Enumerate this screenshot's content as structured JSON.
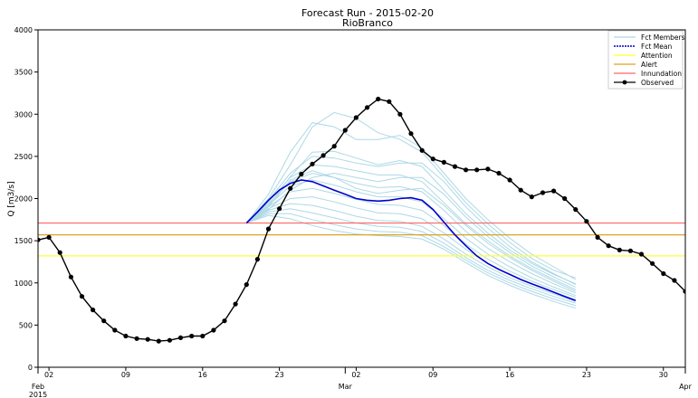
{
  "chart_data": {
    "type": "line",
    "title": "Forecast Run - 2015-02-20",
    "subtitle": "RioBranco",
    "xlabel": "",
    "ylabel": "Q [m3/s]",
    "xlim": [
      "2015-02-01",
      "2015-04-01"
    ],
    "ylim": [
      0,
      4000
    ],
    "y_ticks": [
      0,
      500,
      1000,
      1500,
      2000,
      2500,
      3000,
      3500,
      4000
    ],
    "x_ticks": [
      {
        "date": "2015-02-02",
        "label": "02"
      },
      {
        "date": "2015-02-09",
        "label": "09"
      },
      {
        "date": "2015-02-16",
        "label": "16"
      },
      {
        "date": "2015-02-23",
        "label": "23"
      },
      {
        "date": "2015-03-02",
        "label": "02"
      },
      {
        "date": "2015-03-09",
        "label": "09"
      },
      {
        "date": "2015-03-16",
        "label": "16"
      },
      {
        "date": "2015-03-23",
        "label": "23"
      },
      {
        "date": "2015-03-30",
        "label": "30"
      }
    ],
    "x_major_labels": [
      {
        "date": "2015-02-01",
        "label": "Feb"
      },
      {
        "date": "2015-02-01",
        "label": "2015"
      },
      {
        "date": "2015-03-01",
        "label": "Mar"
      },
      {
        "date": "2015-04-01",
        "label": "Apr"
      }
    ],
    "grid": false,
    "legend_position": "top-right",
    "legend": [
      {
        "label": "Fct Members",
        "color": "#add8e6",
        "style": "line"
      },
      {
        "label": "Fct Mean",
        "color": "#0000cd",
        "style": "dashed"
      },
      {
        "label": "Attention",
        "color": "#ffff33",
        "style": "line"
      },
      {
        "label": "Alert",
        "color": "#daa520",
        "style": "line"
      },
      {
        "label": "Innundation",
        "color": "#ff6666",
        "style": "line"
      },
      {
        "label": "Observed",
        "color": "#000000",
        "style": "line-marker"
      }
    ],
    "thresholds": [
      {
        "name": "Attention",
        "value": 1320,
        "color": "#ffff33"
      },
      {
        "name": "Alert",
        "value": 1570,
        "color": "#daa520"
      },
      {
        "name": "Innundation",
        "value": 1710,
        "color": "#ff6666"
      }
    ],
    "observed": {
      "name": "Observed",
      "color": "#000000",
      "x": [
        "2015-02-01",
        "2015-02-02",
        "2015-02-03",
        "2015-02-04",
        "2015-02-05",
        "2015-02-06",
        "2015-02-07",
        "2015-02-08",
        "2015-02-09",
        "2015-02-10",
        "2015-02-11",
        "2015-02-12",
        "2015-02-13",
        "2015-02-14",
        "2015-02-15",
        "2015-02-16",
        "2015-02-17",
        "2015-02-18",
        "2015-02-19",
        "2015-02-20",
        "2015-02-21",
        "2015-02-22",
        "2015-02-23",
        "2015-02-24",
        "2015-02-25",
        "2015-02-26",
        "2015-02-27",
        "2015-02-28",
        "2015-03-01",
        "2015-03-02",
        "2015-03-03",
        "2015-03-04",
        "2015-03-05",
        "2015-03-06",
        "2015-03-07",
        "2015-03-08",
        "2015-03-09",
        "2015-03-10",
        "2015-03-11",
        "2015-03-12",
        "2015-03-13",
        "2015-03-14",
        "2015-03-15",
        "2015-03-16",
        "2015-03-17",
        "2015-03-18",
        "2015-03-19",
        "2015-03-20",
        "2015-03-21",
        "2015-03-22",
        "2015-03-23",
        "2015-03-24",
        "2015-03-25",
        "2015-03-26",
        "2015-03-27",
        "2015-03-28",
        "2015-03-29",
        "2015-03-30",
        "2015-03-31",
        "2015-04-01"
      ],
      "y": [
        1510,
        1540,
        1360,
        1070,
        840,
        680,
        550,
        440,
        370,
        340,
        330,
        310,
        320,
        350,
        370,
        370,
        440,
        550,
        750,
        980,
        1280,
        1640,
        1880,
        2120,
        2290,
        2410,
        2510,
        2620,
        2810,
        2960,
        3080,
        3180,
        3150,
        3000,
        2770,
        2570,
        2470,
        2430,
        2380,
        2340,
        2340,
        2350,
        2300,
        2220,
        2100,
        2020,
        2070,
        2090,
        2000,
        1870,
        1730,
        1540,
        1440,
        1390,
        1380,
        1340,
        1230,
        1110,
        1030,
        900
      ]
    },
    "forecast_mean": {
      "name": "Fct Mean",
      "color": "#0000cd",
      "x": [
        "2015-02-20",
        "2015-02-21",
        "2015-02-22",
        "2015-02-23",
        "2015-02-24",
        "2015-02-25",
        "2015-02-26",
        "2015-02-27",
        "2015-02-28",
        "2015-03-01",
        "2015-03-02",
        "2015-03-03",
        "2015-03-04",
        "2015-03-05",
        "2015-03-06",
        "2015-03-07",
        "2015-03-08",
        "2015-03-09",
        "2015-03-10",
        "2015-03-11",
        "2015-03-12",
        "2015-03-13",
        "2015-03-14",
        "2015-03-15",
        "2015-03-16",
        "2015-03-17",
        "2015-03-18",
        "2015-03-19",
        "2015-03-20",
        "2015-03-21",
        "2015-03-22"
      ],
      "y": [
        1710,
        1840,
        1980,
        2100,
        2180,
        2220,
        2200,
        2150,
        2100,
        2050,
        2000,
        1980,
        1970,
        1980,
        2000,
        2010,
        1980,
        1870,
        1720,
        1570,
        1440,
        1320,
        1230,
        1160,
        1100,
        1040,
        990,
        940,
        890,
        840,
        790
      ]
    },
    "forecast_members": {
      "name": "Fct Members",
      "color": "#add8e6",
      "x": [
        "2015-02-20",
        "2015-02-22",
        "2015-02-24",
        "2015-02-26",
        "2015-02-28",
        "2015-03-02",
        "2015-03-04",
        "2015-03-06",
        "2015-03-08",
        "2015-03-10",
        "2015-03-12",
        "2015-03-14",
        "2015-03-16",
        "2015-03-18",
        "2015-03-20",
        "2015-03-22"
      ],
      "members": [
        [
          1710,
          2000,
          2400,
          2850,
          3020,
          2950,
          2780,
          2700,
          2550,
          2250,
          1950,
          1700,
          1480,
          1290,
          1150,
          1060
        ],
        [
          1710,
          2050,
          2550,
          2900,
          2850,
          2700,
          2700,
          2750,
          2600,
          2300,
          2000,
          1750,
          1530,
          1340,
          1190,
          1040
        ],
        [
          1710,
          1980,
          2300,
          2500,
          2480,
          2420,
          2380,
          2420,
          2420,
          2200,
          1900,
          1650,
          1430,
          1250,
          1110,
          980
        ],
        [
          1710,
          1960,
          2250,
          2400,
          2380,
          2330,
          2280,
          2280,
          2200,
          1950,
          1700,
          1500,
          1320,
          1170,
          1040,
          920
        ],
        [
          1710,
          1940,
          2200,
          2300,
          2250,
          2180,
          2130,
          2140,
          2080,
          1860,
          1610,
          1410,
          1250,
          1110,
          990,
          880
        ],
        [
          1710,
          1920,
          2150,
          2220,
          2160,
          2080,
          2020,
          2020,
          1960,
          1760,
          1530,
          1340,
          1190,
          1060,
          950,
          850
        ],
        [
          1710,
          1900,
          2080,
          2120,
          2060,
          1990,
          1930,
          1920,
          1860,
          1680,
          1460,
          1280,
          1140,
          1020,
          920,
          830
        ],
        [
          1710,
          1880,
          2000,
          2020,
          1960,
          1890,
          1830,
          1820,
          1760,
          1590,
          1400,
          1230,
          1100,
          990,
          890,
          800
        ],
        [
          1710,
          1860,
          1940,
          1920,
          1860,
          1790,
          1740,
          1730,
          1670,
          1520,
          1340,
          1190,
          1060,
          960,
          870,
          780
        ],
        [
          1710,
          1840,
          1880,
          1830,
          1770,
          1710,
          1670,
          1660,
          1610,
          1470,
          1300,
          1150,
          1030,
          930,
          840,
          760
        ],
        [
          1710,
          1820,
          1820,
          1750,
          1690,
          1640,
          1610,
          1600,
          1560,
          1430,
          1270,
          1120,
          1000,
          900,
          810,
          730
        ],
        [
          1710,
          1800,
          1760,
          1680,
          1620,
          1580,
          1560,
          1550,
          1520,
          1400,
          1240,
          1090,
          970,
          870,
          780,
          700
        ],
        [
          1710,
          1900,
          2220,
          2330,
          2250,
          2120,
          2060,
          2100,
          2120,
          1920,
          1680,
          1470,
          1300,
          1150,
          1020,
          900
        ],
        [
          1710,
          1870,
          2100,
          2250,
          2300,
          2250,
          2200,
          2250,
          2250,
          2050,
          1780,
          1550,
          1360,
          1200,
          1070,
          950
        ],
        [
          1710,
          1920,
          2260,
          2550,
          2560,
          2480,
          2400,
          2450,
          2380,
          2100,
          1820,
          1590,
          1390,
          1230,
          1100,
          990
        ]
      ]
    }
  }
}
